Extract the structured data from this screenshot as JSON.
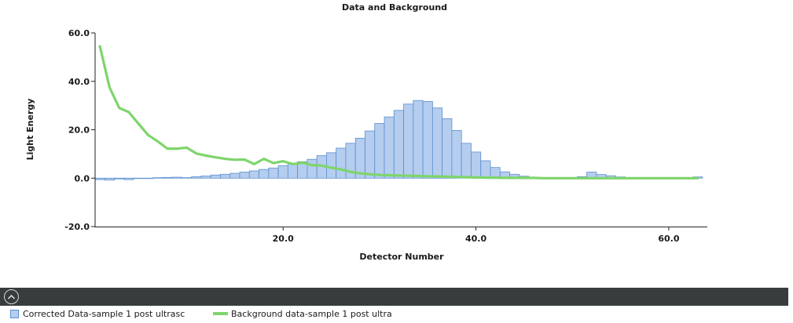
{
  "chart_data": {
    "type": "bar",
    "title": "Data and Background",
    "xlabel": "Detector Number",
    "ylabel": "Light Energy",
    "xlim": [
      0.5,
      64
    ],
    "ylim": [
      -20,
      60
    ],
    "xticks": [
      20,
      40,
      60
    ],
    "xtick_labels": [
      "20.0",
      "40.0",
      "60.0"
    ],
    "yticks": [
      -20,
      0,
      20,
      40,
      60
    ],
    "ytick_labels": [
      "-20.0",
      "0.0",
      "20.0",
      "40.0",
      "60.0"
    ],
    "grid": false,
    "legend_position": "bottom",
    "series": [
      {
        "name": "Corrected Data-sample 1 post ultrasc",
        "type": "bar",
        "color": "#b5cdee",
        "edge_color": "#5b8fd0",
        "x": [
          1,
          2,
          3,
          4,
          5,
          6,
          7,
          8,
          9,
          10,
          11,
          12,
          13,
          14,
          15,
          16,
          17,
          18,
          19,
          20,
          21,
          22,
          23,
          24,
          25,
          26,
          27,
          28,
          29,
          30,
          31,
          32,
          33,
          34,
          35,
          36,
          37,
          38,
          39,
          40,
          41,
          42,
          43,
          44,
          45,
          46,
          47,
          48,
          49,
          50,
          51,
          52,
          53,
          54,
          55,
          56,
          57,
          58,
          59,
          60,
          61,
          62,
          63
        ],
        "values": [
          -0.6,
          -0.8,
          -0.3,
          -0.6,
          0.0,
          -0.1,
          0.2,
          0.3,
          0.4,
          0.2,
          0.6,
          0.9,
          1.3,
          1.6,
          2.0,
          2.5,
          3.0,
          3.6,
          4.2,
          5.2,
          6.0,
          6.8,
          7.8,
          9.3,
          10.5,
          12.4,
          14.4,
          16.5,
          19.5,
          22.6,
          25.3,
          28.0,
          30.6,
          32.1,
          31.7,
          29.0,
          24.6,
          19.7,
          14.4,
          10.8,
          7.2,
          4.4,
          2.6,
          1.6,
          0.8,
          0.1,
          0.0,
          0.0,
          0.0,
          0.0,
          0.6,
          2.5,
          1.5,
          1.0,
          0.5,
          0.2,
          0.1,
          0.1,
          0.1,
          0.1,
          0.1,
          0.1,
          0.5
        ]
      },
      {
        "name": "Background data-sample 1 post ultra",
        "type": "line",
        "color": "#7ed56b",
        "x": [
          1,
          2,
          3,
          4,
          5,
          6,
          7,
          8,
          9,
          10,
          11,
          12,
          13,
          14,
          15,
          16,
          17,
          18,
          19,
          20,
          21,
          22,
          23,
          24,
          25,
          26,
          27,
          28,
          29,
          30,
          31,
          32,
          33,
          34,
          35,
          36,
          37,
          38,
          39,
          40,
          41,
          42,
          43,
          44,
          45,
          46,
          47,
          48,
          49,
          50,
          51,
          52,
          53,
          54,
          55,
          56,
          57,
          58,
          59,
          60,
          61,
          62,
          63
        ],
        "values": [
          54.5,
          37.5,
          29.0,
          27.3,
          22.5,
          17.8,
          15.2,
          12.2,
          12.2,
          12.6,
          10.2,
          9.3,
          8.6,
          8.0,
          7.6,
          7.7,
          5.8,
          8.0,
          6.2,
          7.0,
          5.8,
          6.4,
          5.4,
          5.2,
          4.3,
          3.6,
          2.6,
          2.0,
          1.6,
          1.3,
          1.2,
          1.1,
          1.0,
          0.9,
          0.8,
          0.7,
          0.6,
          0.5,
          0.4,
          0.3,
          0.2,
          0.2,
          0.1,
          0.1,
          0.1,
          0.1,
          0.0,
          0.0,
          0.0,
          0.0,
          0.0,
          0.0,
          0.0,
          0.0,
          0.0,
          0.0,
          0.0,
          0.0,
          0.0,
          0.0,
          0.0,
          0.0,
          0.0
        ]
      }
    ]
  },
  "legend": {
    "items": [
      {
        "label": "Corrected Data-sample 1 post ultrasc"
      },
      {
        "label": "Background data-sample 1 post ultra"
      }
    ]
  },
  "toolbar": {
    "collapse_icon": "chevron-up-icon"
  }
}
